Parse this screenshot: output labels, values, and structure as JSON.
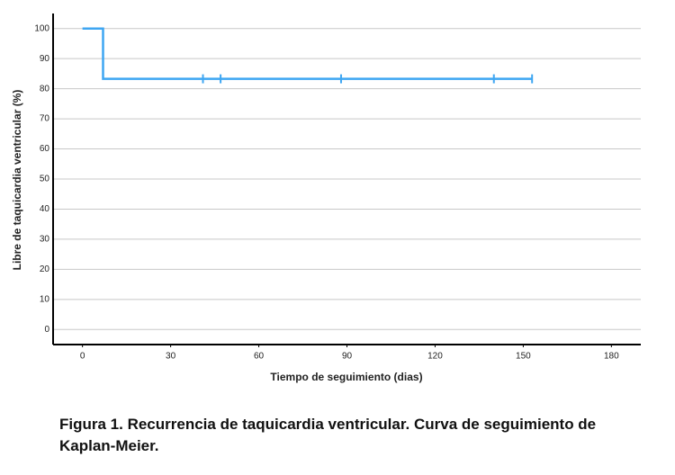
{
  "chart_data": {
    "type": "step",
    "y_label": "Libre de taquicardia ventricular (%)",
    "x_label": "Tiempo de seguimiento (dias)",
    "caption": "Figura 1. Recurrencia de taquicardia ventricular. Curva de seguimiento de Kaplan-Meier.",
    "x": [
      0,
      7,
      153
    ],
    "values": [
      100,
      83.3,
      83.3
    ],
    "color": "#3ea6f2",
    "censored_x": [
      41,
      47,
      88,
      140,
      153
    ],
    "censored_values": [
      83.3,
      83.3,
      83.3,
      83.3,
      83.3
    ],
    "xlim": [
      -10,
      190
    ],
    "xticks": [
      0,
      30,
      60,
      90,
      120,
      150,
      180
    ],
    "ylim": [
      -5,
      105
    ],
    "yticks": [
      0,
      10,
      20,
      30,
      40,
      50,
      60,
      70,
      80,
      90,
      100
    ],
    "grid": true
  }
}
